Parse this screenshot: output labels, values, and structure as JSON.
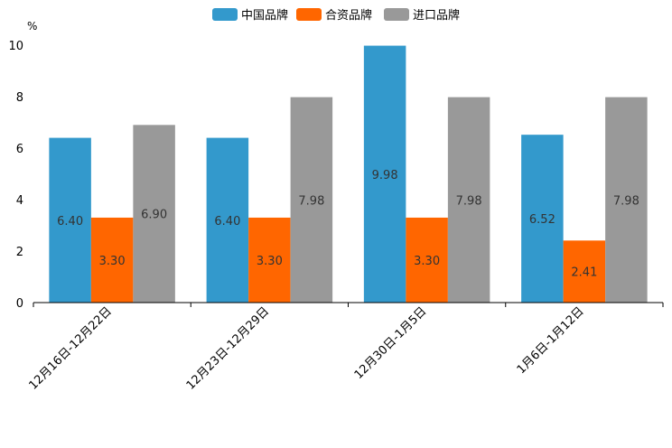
{
  "chart_data": {
    "type": "bar",
    "title": "",
    "xlabel": "",
    "ylabel": "%",
    "ylim": [
      0,
      10
    ],
    "yticks": [
      0,
      2,
      4,
      6,
      8,
      10
    ],
    "grid": false,
    "legend_position": "top-center",
    "categories": [
      "12月16日-12月22日",
      "12月23日-12月29日",
      "12月30日-1月5日",
      "1月6日-1月12日"
    ],
    "series": [
      {
        "name": "中国品牌",
        "color": "#3399cc",
        "values": [
          6.4,
          6.4,
          9.98,
          6.52
        ],
        "labels": [
          "6.40",
          "6.40",
          "9.98",
          "6.52"
        ]
      },
      {
        "name": "合资品牌",
        "color": "#ff6600",
        "values": [
          3.3,
          3.3,
          3.3,
          2.41
        ],
        "labels": [
          "3.30",
          "3.30",
          "3.30",
          "2.41"
        ]
      },
      {
        "name": "进口品牌",
        "color": "#999999",
        "values": [
          6.9,
          7.98,
          7.98,
          7.98
        ],
        "labels": [
          "6.90",
          "7.98",
          "7.98",
          "7.98"
        ]
      }
    ]
  }
}
